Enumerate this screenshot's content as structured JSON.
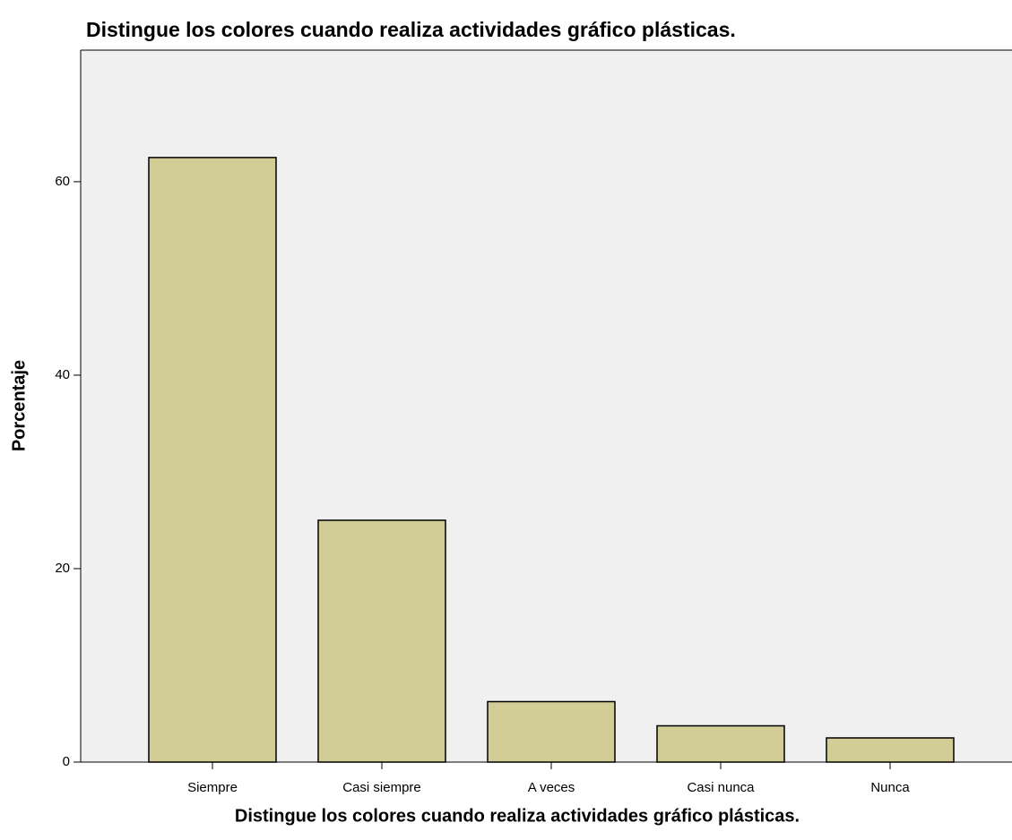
{
  "chart_data": {
    "type": "bar",
    "title": "Distingue los colores cuando realiza actividades gráfico plásticas.",
    "x_label": "Distingue los colores cuando realiza actividades gráfico plásticas.",
    "y_label": "Porcentaje",
    "categories": [
      "Siempre",
      "Casi siempre",
      "A veces",
      "Casi nunca",
      "Nunca"
    ],
    "values": [
      62.5,
      25,
      6.25,
      3.75,
      2.5
    ],
    "color": "#d2cc96",
    "ylim": [
      0,
      73.6
    ],
    "yticks": [
      0,
      20,
      40,
      60
    ],
    "grid": false
  }
}
